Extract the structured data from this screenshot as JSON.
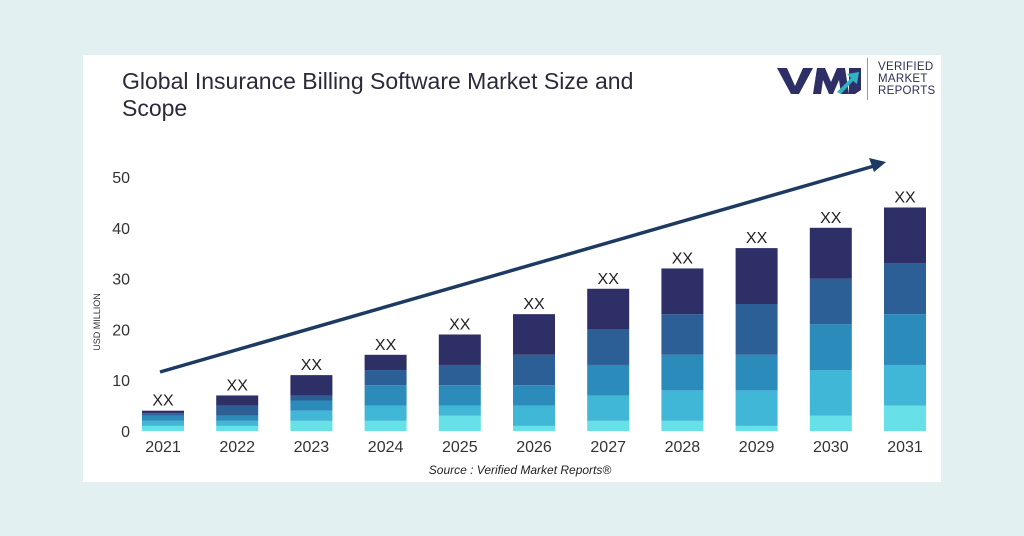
{
  "chart_data": {
    "type": "bar",
    "stacked": true,
    "title": "Global Insurance Billing Software Market Size and Scope",
    "xlabel": "",
    "ylabel": "USD MILLION",
    "ylim": [
      0,
      50
    ],
    "yticks": [
      0,
      10,
      20,
      30,
      40,
      50
    ],
    "grid": false,
    "categories": [
      "2021",
      "2022",
      "2023",
      "2024",
      "2025",
      "2026",
      "2027",
      "2028",
      "2029",
      "2030",
      "2031"
    ],
    "series": [
      {
        "values": [
          1,
          1,
          2,
          2,
          3,
          1,
          2,
          2,
          1,
          3,
          5
        ],
        "color": "#67e1e7"
      },
      {
        "values": [
          1,
          1,
          2,
          3,
          2,
          4,
          5,
          6,
          7,
          9,
          8
        ],
        "color": "#41b7d7"
      },
      {
        "values": [
          1,
          1,
          2,
          4,
          4,
          4,
          6,
          7,
          7,
          9,
          10
        ],
        "color": "#2b8cbb"
      },
      {
        "values": [
          0.5,
          2,
          1,
          3,
          4,
          6,
          7,
          8,
          10,
          9,
          10
        ],
        "color": "#2c5f96"
      },
      {
        "values": [
          0.5,
          2,
          4,
          3,
          6,
          8,
          8,
          9,
          11,
          10,
          11
        ],
        "color": "#2e2f66"
      }
    ],
    "data_labels": [
      "XX",
      "XX",
      "XX",
      "XX",
      "XX",
      "XX",
      "XX",
      "XX",
      "XX",
      "XX",
      "XX"
    ],
    "annotations": [
      "trend-arrow"
    ],
    "source": "Source :  Verified Market Reports®"
  },
  "logo": {
    "line1": "VERIFIED",
    "line2": "MARKET",
    "line3": "REPORTS",
    "mark": "VMR"
  }
}
